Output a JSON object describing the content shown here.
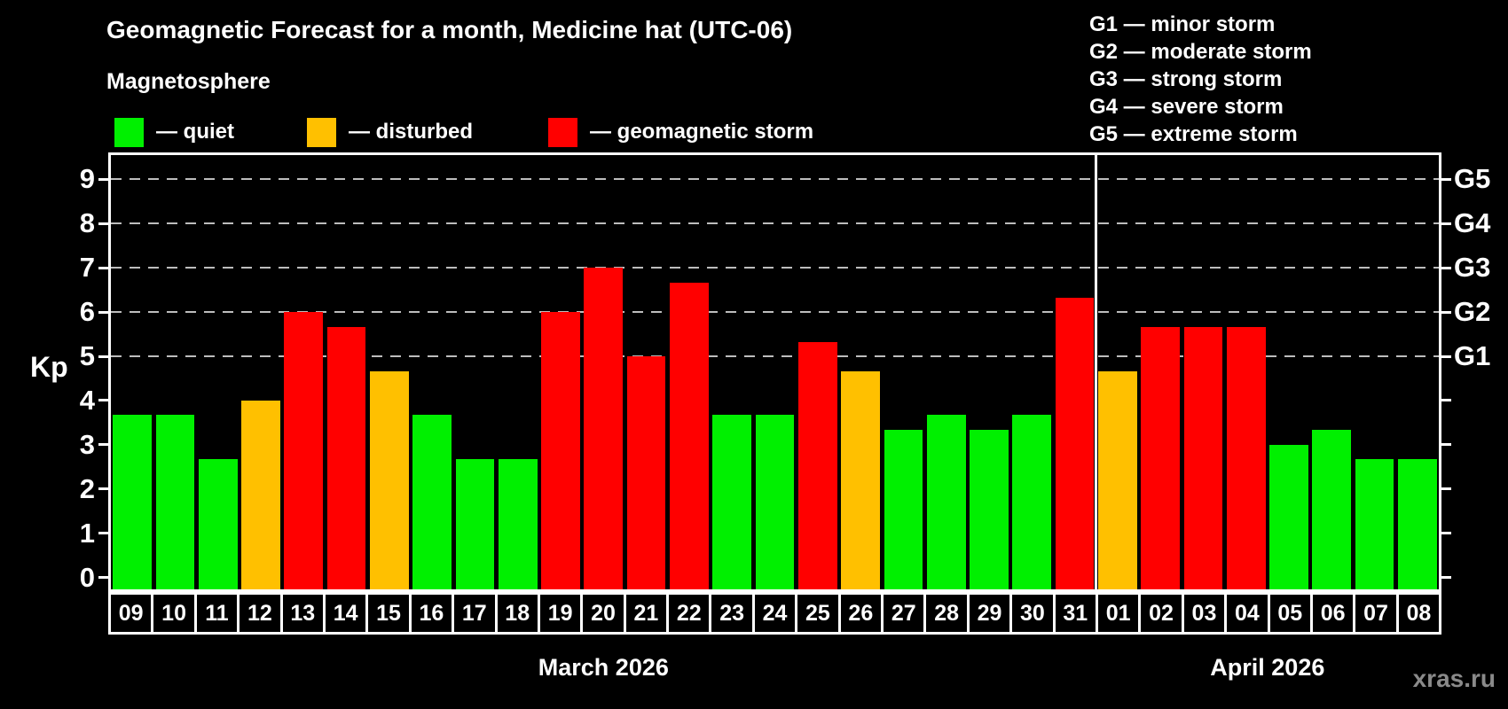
{
  "header": {
    "title": "Geomagnetic Forecast for a month, Medicine hat (UTC-06)",
    "subtitle": "Magnetosphere",
    "watermark": "xras.ru"
  },
  "legend": {
    "items": [
      {
        "key": "quiet",
        "label": "— quiet",
        "color": "#00f000"
      },
      {
        "key": "disturbed",
        "label": "— disturbed",
        "color": "#ffc000"
      },
      {
        "key": "storm",
        "label": "— geomagnetic storm",
        "color": "#ff0000"
      }
    ]
  },
  "storm_scale": [
    "G1 — minor storm",
    "G2 — moderate storm",
    "G3 — strong storm",
    "G4 — severe storm",
    "G5 — extreme storm"
  ],
  "chart_data": {
    "type": "bar",
    "title": "Geomagnetic Forecast for a month, Medicine hat (UTC-06)",
    "ylabel": "Kp",
    "ylim": [
      -0.33,
      9.62
    ],
    "y_ticks": [
      0,
      1,
      2,
      3,
      4,
      5,
      6,
      7,
      8,
      9
    ],
    "grid_levels": [
      5,
      6,
      7,
      8,
      9
    ],
    "grid": "dashed-above-5",
    "legend_position": "top",
    "right_axis_labels": [
      {
        "kp": 5,
        "label": "G1"
      },
      {
        "kp": 6,
        "label": "G2"
      },
      {
        "kp": 7,
        "label": "G3"
      },
      {
        "kp": 8,
        "label": "G4"
      },
      {
        "kp": 9,
        "label": "G5"
      }
    ],
    "months": [
      {
        "label": "March 2026",
        "days": 23
      },
      {
        "label": "April 2026",
        "days": 8
      }
    ],
    "status_colors": {
      "quiet": "#00f000",
      "disturbed": "#ffc000",
      "storm": "#ff0000"
    },
    "points": [
      {
        "day": "09",
        "month": "March 2026",
        "kp": 3.67,
        "status": "quiet"
      },
      {
        "day": "10",
        "month": "March 2026",
        "kp": 3.67,
        "status": "quiet"
      },
      {
        "day": "11",
        "month": "March 2026",
        "kp": 2.67,
        "status": "quiet"
      },
      {
        "day": "12",
        "month": "March 2026",
        "kp": 4.0,
        "status": "disturbed"
      },
      {
        "day": "13",
        "month": "March 2026",
        "kp": 6.0,
        "status": "storm"
      },
      {
        "day": "14",
        "month": "March 2026",
        "kp": 5.67,
        "status": "storm"
      },
      {
        "day": "15",
        "month": "March 2026",
        "kp": 4.67,
        "status": "disturbed"
      },
      {
        "day": "16",
        "month": "March 2026",
        "kp": 3.67,
        "status": "quiet"
      },
      {
        "day": "17",
        "month": "March 2026",
        "kp": 2.67,
        "status": "quiet"
      },
      {
        "day": "18",
        "month": "March 2026",
        "kp": 2.67,
        "status": "quiet"
      },
      {
        "day": "19",
        "month": "March 2026",
        "kp": 6.0,
        "status": "storm"
      },
      {
        "day": "20",
        "month": "March 2026",
        "kp": 7.0,
        "status": "storm"
      },
      {
        "day": "21",
        "month": "March 2026",
        "kp": 5.0,
        "status": "storm"
      },
      {
        "day": "22",
        "month": "March 2026",
        "kp": 6.67,
        "status": "storm"
      },
      {
        "day": "23",
        "month": "March 2026",
        "kp": 3.67,
        "status": "quiet"
      },
      {
        "day": "24",
        "month": "March 2026",
        "kp": 3.67,
        "status": "quiet"
      },
      {
        "day": "25",
        "month": "March 2026",
        "kp": 5.33,
        "status": "storm"
      },
      {
        "day": "26",
        "month": "March 2026",
        "kp": 4.67,
        "status": "disturbed"
      },
      {
        "day": "27",
        "month": "March 2026",
        "kp": 3.33,
        "status": "quiet"
      },
      {
        "day": "28",
        "month": "March 2026",
        "kp": 3.67,
        "status": "quiet"
      },
      {
        "day": "29",
        "month": "March 2026",
        "kp": 3.33,
        "status": "quiet"
      },
      {
        "day": "30",
        "month": "March 2026",
        "kp": 3.67,
        "status": "quiet"
      },
      {
        "day": "31",
        "month": "March 2026",
        "kp": 6.33,
        "status": "storm"
      },
      {
        "day": "01",
        "month": "April 2026",
        "kp": 4.67,
        "status": "disturbed"
      },
      {
        "day": "02",
        "month": "April 2026",
        "kp": 5.67,
        "status": "storm"
      },
      {
        "day": "03",
        "month": "April 2026",
        "kp": 5.67,
        "status": "storm"
      },
      {
        "day": "04",
        "month": "April 2026",
        "kp": 5.67,
        "status": "storm"
      },
      {
        "day": "05",
        "month": "April 2026",
        "kp": 3.0,
        "status": "quiet"
      },
      {
        "day": "06",
        "month": "April 2026",
        "kp": 3.33,
        "status": "quiet"
      },
      {
        "day": "07",
        "month": "April 2026",
        "kp": 2.67,
        "status": "quiet"
      },
      {
        "day": "08",
        "month": "April 2026",
        "kp": 2.67,
        "status": "quiet"
      }
    ]
  }
}
